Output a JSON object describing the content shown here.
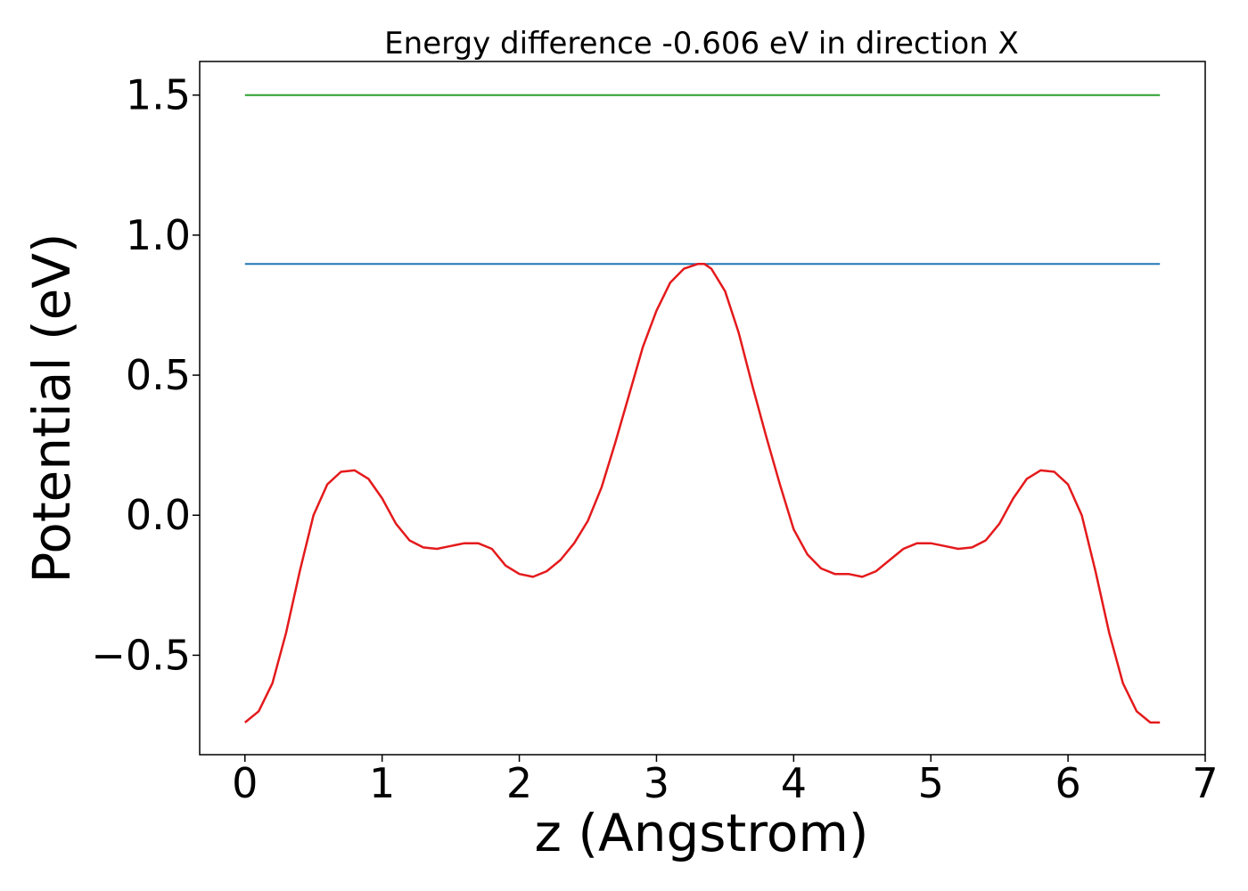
{
  "chart_data": {
    "type": "line",
    "title": "Energy difference -0.606 eV in direction X",
    "xlabel": "z (Angstrom)",
    "ylabel": "Potential (eV)",
    "xlim": [
      -0.33,
      7.0
    ],
    "ylim": [
      -0.855,
      1.62
    ],
    "grid": false,
    "legend": "none",
    "xticks": [
      0,
      1,
      2,
      3,
      4,
      5,
      6,
      7
    ],
    "xtick_labels": [
      "0",
      "1",
      "2",
      "3",
      "4",
      "5",
      "6",
      "7"
    ],
    "yticks": [
      -0.5,
      0.0,
      0.5,
      1.0,
      1.5
    ],
    "ytick_labels": [
      "−0.5",
      "0.0",
      "0.5",
      "1.0",
      "1.5"
    ],
    "series": [
      {
        "color": "#2ca02c",
        "x": [
          0.0,
          6.67
        ],
        "y": [
          1.5,
          1.5
        ]
      },
      {
        "color": "#1f77b4",
        "x": [
          0.0,
          6.67
        ],
        "y": [
          0.897,
          0.897
        ]
      },
      {
        "color": "#e41a1c",
        "x": [
          0.0,
          0.1,
          0.2,
          0.3,
          0.4,
          0.5,
          0.6,
          0.7,
          0.8,
          0.9,
          1.0,
          1.1,
          1.2,
          1.3,
          1.4,
          1.5,
          1.6,
          1.7,
          1.8,
          1.9,
          2.0,
          2.1,
          2.2,
          2.3,
          2.4,
          2.5,
          2.6,
          2.7,
          2.8,
          2.9,
          3.0,
          3.1,
          3.2,
          3.3,
          3.35,
          3.4,
          3.5,
          3.6,
          3.7,
          3.8,
          3.9,
          4.0,
          4.1,
          4.2,
          4.3,
          4.4,
          4.5,
          4.6,
          4.7,
          4.8,
          4.9,
          5.0,
          5.1,
          5.2,
          5.3,
          5.4,
          5.5,
          5.6,
          5.7,
          5.8,
          5.9,
          6.0,
          6.1,
          6.2,
          6.3,
          6.4,
          6.5,
          6.6,
          6.67
        ],
        "y": [
          -0.74,
          -0.7,
          -0.6,
          -0.42,
          -0.2,
          0.0,
          0.11,
          0.155,
          0.16,
          0.13,
          0.06,
          -0.03,
          -0.09,
          -0.115,
          -0.12,
          -0.11,
          -0.1,
          -0.1,
          -0.12,
          -0.18,
          -0.21,
          -0.22,
          -0.2,
          -0.16,
          -0.1,
          -0.02,
          0.1,
          0.26,
          0.43,
          0.6,
          0.73,
          0.83,
          0.88,
          0.897,
          0.897,
          0.88,
          0.8,
          0.65,
          0.46,
          0.28,
          0.11,
          -0.05,
          -0.14,
          -0.19,
          -0.21,
          -0.21,
          -0.22,
          -0.2,
          -0.16,
          -0.12,
          -0.1,
          -0.1,
          -0.11,
          -0.12,
          -0.115,
          -0.09,
          -0.03,
          0.06,
          0.13,
          0.16,
          0.155,
          0.11,
          0.0,
          -0.2,
          -0.42,
          -0.6,
          -0.7,
          -0.74,
          -0.74
        ]
      }
    ]
  }
}
